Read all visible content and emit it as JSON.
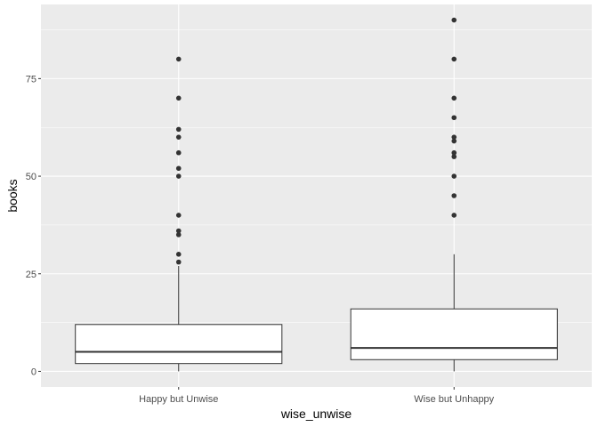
{
  "chart_data": {
    "type": "boxplot",
    "title": "",
    "xlabel": "wise_unwise",
    "ylabel": "books",
    "categories": [
      "Happy but Unwise",
      "Wise but Unhappy"
    ],
    "ylim": [
      -4,
      94
    ],
    "yticks": [
      0,
      25,
      50,
      75
    ],
    "grid": true,
    "panel_background": "#ebebeb",
    "grid_color": "#ffffff",
    "box_fill": "#ffffff",
    "line_color": "#333333",
    "point_color": "#333333",
    "series": [
      {
        "category": "Happy but Unwise",
        "min": 0,
        "q1": 2,
        "median": 5,
        "q3": 12,
        "whisker_high": 27,
        "outliers": [
          28,
          30,
          35,
          36,
          40,
          50,
          52,
          56,
          60,
          62,
          70,
          80
        ]
      },
      {
        "category": "Wise but Unhappy",
        "min": 0,
        "q1": 3,
        "median": 6,
        "q3": 16,
        "whisker_high": 30,
        "outliers": [
          40,
          45,
          50,
          55,
          56,
          59,
          60,
          65,
          70,
          80,
          90
        ]
      }
    ]
  }
}
